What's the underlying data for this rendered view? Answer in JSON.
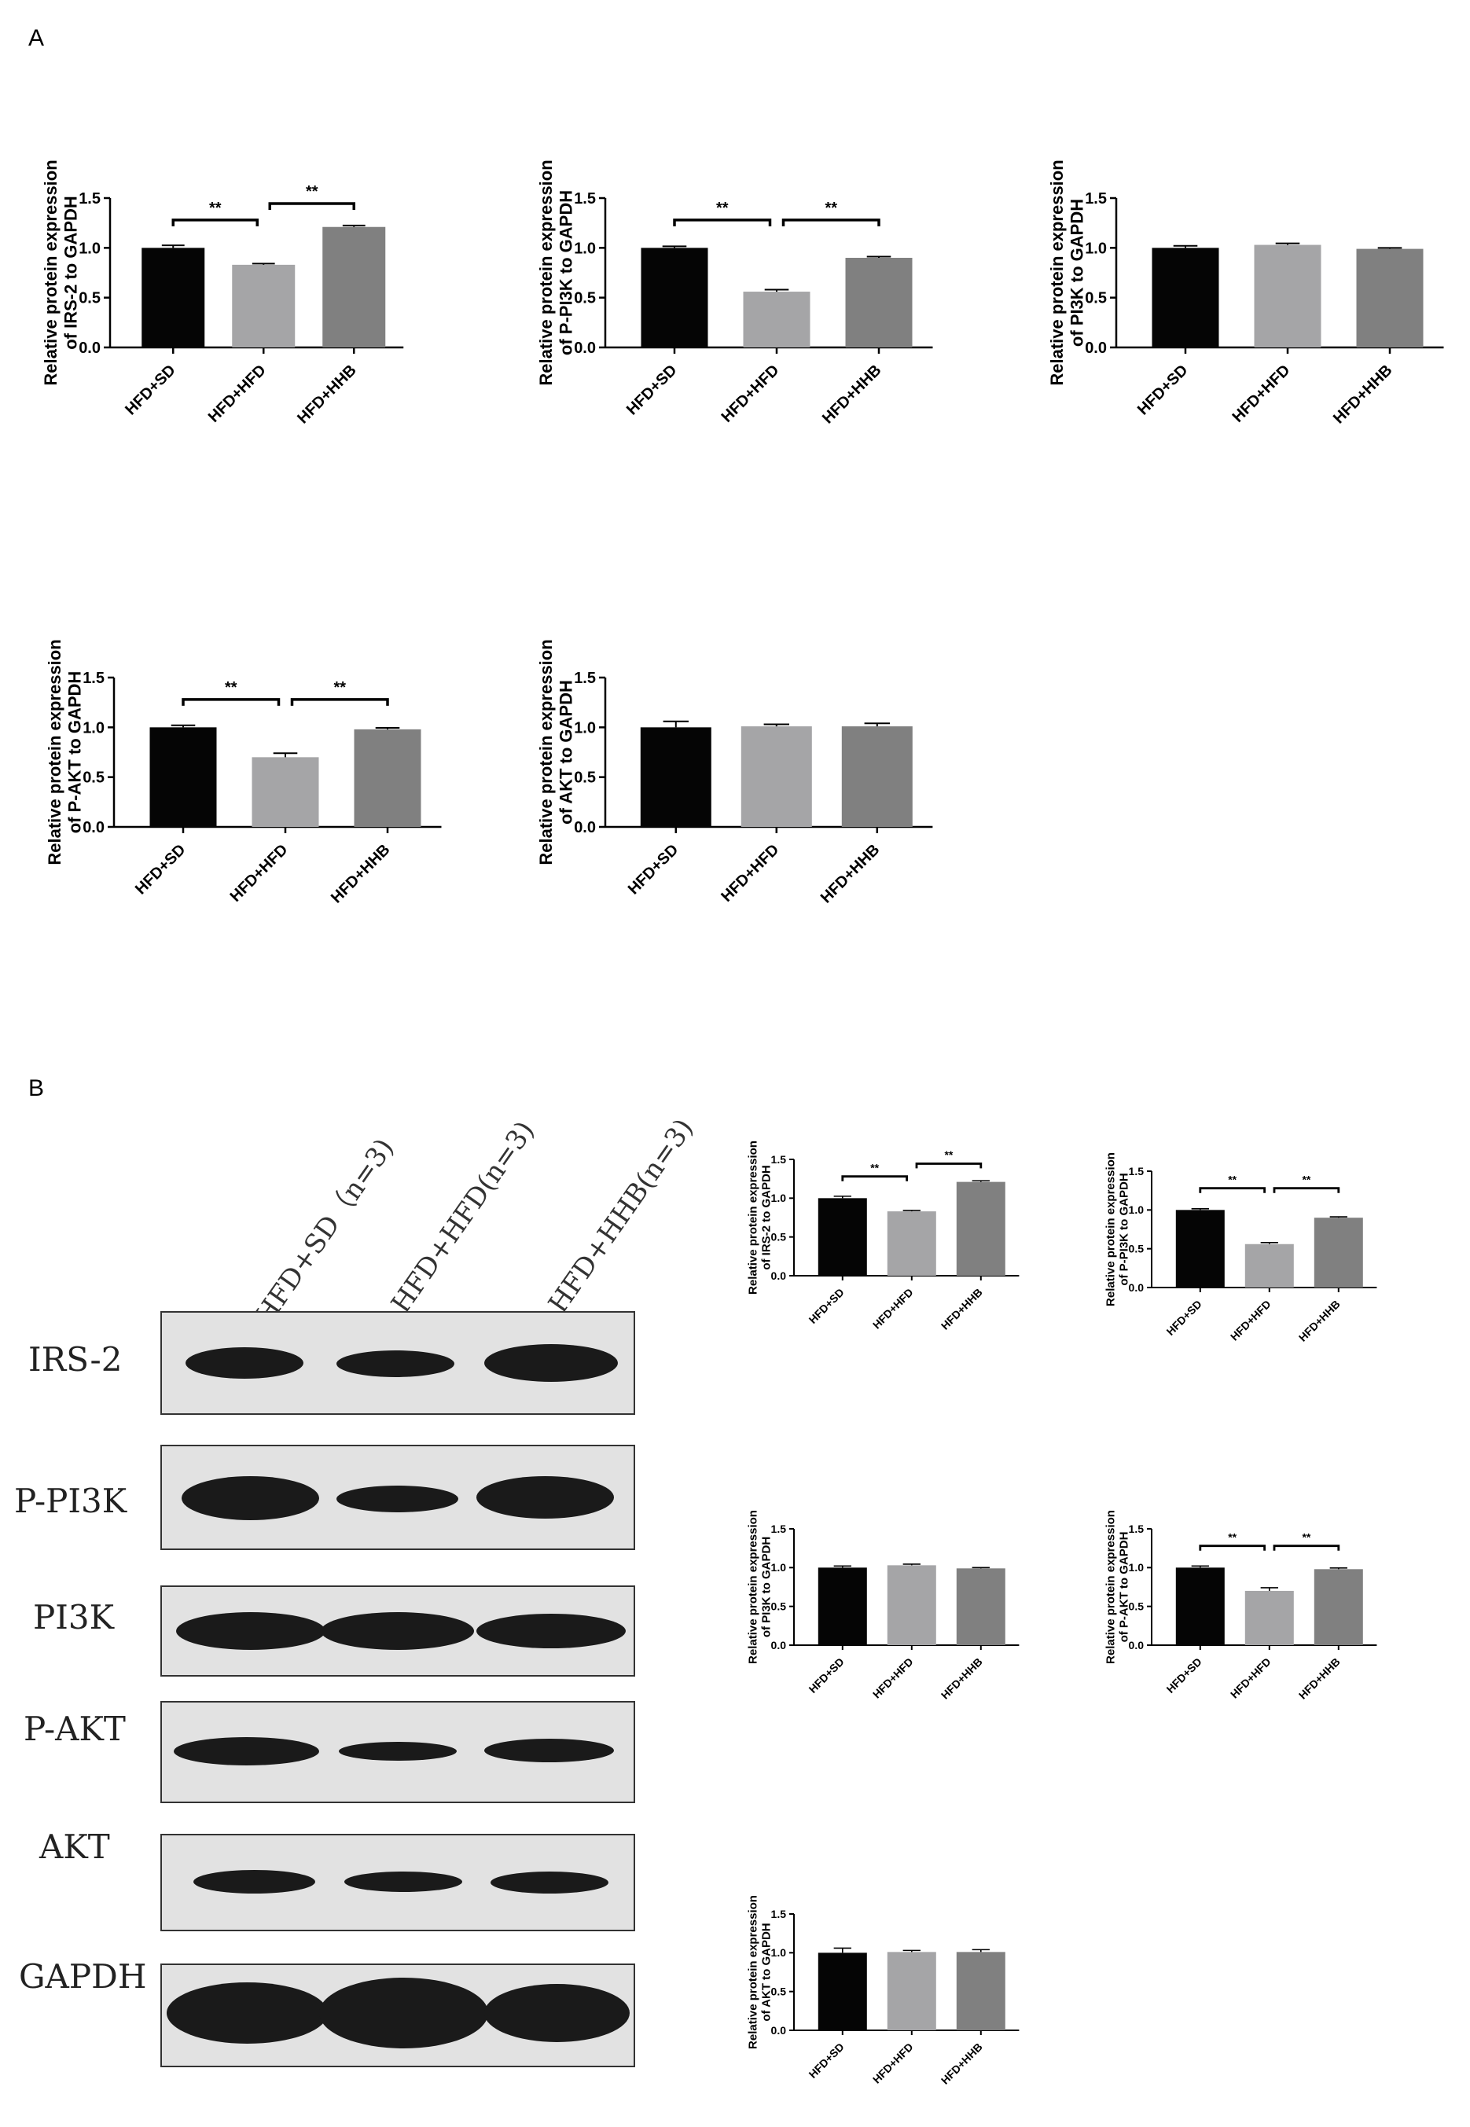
{
  "panels": {
    "a": "A",
    "b": "B"
  },
  "colors": {
    "hfd_sd": "#050505",
    "hfd_hfd": "#a5a5a7",
    "hfd_hhb": "#808080"
  },
  "chart_data": [
    {
      "id": "A1",
      "type": "bar",
      "categories": [
        "HFD+SD",
        "HFD+HFD",
        "HFD+HHB"
      ],
      "values": [
        1.0,
        0.83,
        1.21
      ],
      "errors": [
        0.025,
        0.012,
        0.015
      ],
      "ylabel_lines": [
        "Relative protein expression",
        "of IRS-2 to GAPDH"
      ],
      "ylim": [
        0,
        1.5
      ],
      "yticks": [
        "0.0",
        "0.5",
        "1.0",
        "1.5"
      ],
      "annotations": [
        {
          "from": 0,
          "to": 1,
          "label": "**"
        },
        {
          "from": 1,
          "to": 2,
          "label": "**"
        }
      ]
    },
    {
      "id": "A2",
      "type": "bar",
      "categories": [
        "HFD+SD",
        "HFD+HFD",
        "HFD+HHB"
      ],
      "values": [
        1.0,
        0.56,
        0.9
      ],
      "errors": [
        0.015,
        0.02,
        0.012
      ],
      "ylabel_lines": [
        "Relative protein expression",
        "of P-PI3K to GAPDH"
      ],
      "ylim": [
        0,
        1.5
      ],
      "yticks": [
        "0.0",
        "0.5",
        "1.0",
        "1.5"
      ],
      "annotations": [
        {
          "from": 0,
          "to": 1,
          "label": "**"
        },
        {
          "from": 1,
          "to": 2,
          "label": "**"
        }
      ]
    },
    {
      "id": "A3",
      "type": "bar",
      "categories": [
        "HFD+SD",
        "HFD+HFD",
        "HFD+HHB"
      ],
      "values": [
        1.0,
        1.03,
        0.99
      ],
      "errors": [
        0.02,
        0.015,
        0.01
      ],
      "ylabel_lines": [
        "Relative protein expression",
        "of PI3K to GAPDH"
      ],
      "ylim": [
        0,
        1.5
      ],
      "yticks": [
        "0.0",
        "0.5",
        "1.0",
        "1.5"
      ],
      "annotations": []
    },
    {
      "id": "A4",
      "type": "bar",
      "categories": [
        "HFD+SD",
        "HFD+HFD",
        "HFD+HHB"
      ],
      "values": [
        1.0,
        0.7,
        0.98
      ],
      "errors": [
        0.02,
        0.04,
        0.015
      ],
      "ylabel_lines": [
        "Relative protein expression",
        "of P-AKT to GAPDH"
      ],
      "ylim": [
        0,
        1.5
      ],
      "yticks": [
        "0.0",
        "0.5",
        "1.0",
        "1.5"
      ],
      "annotations": [
        {
          "from": 0,
          "to": 1,
          "label": "**"
        },
        {
          "from": 1,
          "to": 2,
          "label": "**"
        }
      ]
    },
    {
      "id": "A5",
      "type": "bar",
      "categories": [
        "HFD+SD",
        "HFD+HFD",
        "HFD+HHB"
      ],
      "values": [
        1.0,
        1.01,
        1.01
      ],
      "errors": [
        0.06,
        0.02,
        0.03
      ],
      "ylabel_lines": [
        "Relative protein expression",
        "of AKT to GAPDH"
      ],
      "ylim": [
        0,
        1.5
      ],
      "yticks": [
        "0.0",
        "0.5",
        "1.0",
        "1.5"
      ],
      "annotations": []
    },
    {
      "id": "B1",
      "type": "bar",
      "categories": [
        "HFD+SD",
        "HFD+HFD",
        "HFD+HHB"
      ],
      "values": [
        1.0,
        0.83,
        1.21
      ],
      "errors": [
        0.025,
        0.012,
        0.015
      ],
      "ylabel_lines": [
        "Relative protein expression",
        "of IRS-2 to GAPDH"
      ],
      "ylim": [
        0,
        1.5
      ],
      "yticks": [
        "0.0",
        "0.5",
        "1.0",
        "1.5"
      ],
      "annotations": [
        {
          "from": 0,
          "to": 1,
          "label": "**"
        },
        {
          "from": 1,
          "to": 2,
          "label": "**"
        }
      ]
    },
    {
      "id": "B2",
      "type": "bar",
      "categories": [
        "HFD+SD",
        "HFD+HFD",
        "HFD+HHB"
      ],
      "values": [
        1.0,
        0.56,
        0.9
      ],
      "errors": [
        0.015,
        0.02,
        0.012
      ],
      "ylabel_lines": [
        "Relative protein expression",
        "of P-PI3K to GAPDH"
      ],
      "ylim": [
        0,
        1.5
      ],
      "yticks": [
        "0.0",
        "0.5",
        "1.0",
        "1.5"
      ],
      "annotations": [
        {
          "from": 0,
          "to": 1,
          "label": "**"
        },
        {
          "from": 1,
          "to": 2,
          "label": "**"
        }
      ]
    },
    {
      "id": "B3",
      "type": "bar",
      "categories": [
        "HFD+SD",
        "HFD+HFD",
        "HFD+HHB"
      ],
      "values": [
        1.0,
        1.03,
        0.99
      ],
      "errors": [
        0.02,
        0.015,
        0.01
      ],
      "ylabel_lines": [
        "Relative protein expression",
        "of PI3K to GAPDH"
      ],
      "ylim": [
        0,
        1.5
      ],
      "yticks": [
        "0.0",
        "0.5",
        "1.0",
        "1.5"
      ],
      "annotations": []
    },
    {
      "id": "B4",
      "type": "bar",
      "categories": [
        "HFD+SD",
        "HFD+HFD",
        "HFD+HHB"
      ],
      "values": [
        1.0,
        0.7,
        0.98
      ],
      "errors": [
        0.02,
        0.04,
        0.015
      ],
      "ylabel_lines": [
        "Relative protein expression",
        "of P-AKT to GAPDH"
      ],
      "ylim": [
        0,
        1.5
      ],
      "yticks": [
        "0.0",
        "0.5",
        "1.0",
        "1.5"
      ],
      "annotations": [
        {
          "from": 0,
          "to": 1,
          "label": "**"
        },
        {
          "from": 1,
          "to": 2,
          "label": "**"
        }
      ]
    },
    {
      "id": "B5",
      "type": "bar",
      "categories": [
        "HFD+SD",
        "HFD+HFD",
        "HFD+HHB"
      ],
      "values": [
        1.0,
        1.01,
        1.01
      ],
      "errors": [
        0.06,
        0.02,
        0.03
      ],
      "ylabel_lines": [
        "Relative protein expression",
        "of AKT to GAPDH"
      ],
      "ylim": [
        0,
        1.5
      ],
      "yticks": [
        "0.0",
        "0.5",
        "1.0",
        "1.5"
      ],
      "annotations": []
    }
  ],
  "blot": {
    "lanes": [
      "HFD+SD（n=3)",
      "HFD+HFD(n=3)",
      "HFD+HHB(n=3)"
    ],
    "rows": [
      "IRS-2",
      "P-PI3K",
      "PI3K",
      "P-AKT",
      "AKT",
      "GAPDH"
    ]
  }
}
